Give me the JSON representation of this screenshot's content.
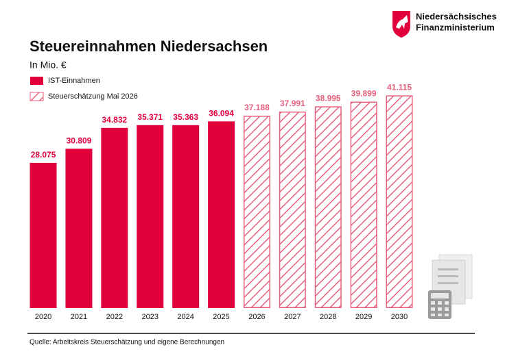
{
  "logo": {
    "lines": [
      "Niedersächsisches",
      "Finanzministerium"
    ]
  },
  "chart_data": {
    "type": "bar",
    "title": "Steuereinnahmen Niedersachsen",
    "subtitle": "In Mio. €",
    "categories": [
      "2020",
      "2021",
      "2022",
      "2023",
      "2024",
      "2025",
      "2026",
      "2027",
      "2028",
      "2029",
      "2030"
    ],
    "series": [
      {
        "name": "IST-Einnahmen",
        "color": "#e2003c",
        "hatched": false,
        "values": [
          28075,
          30809,
          34832,
          35371,
          35363,
          36094,
          null,
          null,
          null,
          null,
          null
        ],
        "value_labels": [
          "28.075",
          "30.809",
          "34.832",
          "35.371",
          "35.363",
          "36.094",
          null,
          null,
          null,
          null,
          null
        ]
      },
      {
        "name": "Steuerschätzung Mai 2026",
        "color": "#e8607e",
        "hatched": true,
        "values": [
          null,
          null,
          null,
          null,
          null,
          null,
          37188,
          37991,
          38995,
          39899,
          41115
        ],
        "value_labels": [
          null,
          null,
          null,
          null,
          null,
          null,
          "37.188",
          "37.991",
          "38.995",
          "39.899",
          "41.115"
        ]
      }
    ],
    "ylim": [
      0,
      45000
    ],
    "source": "Quelle: Arbeitskreis Steuerschätzung und eigene Berechnungen"
  }
}
